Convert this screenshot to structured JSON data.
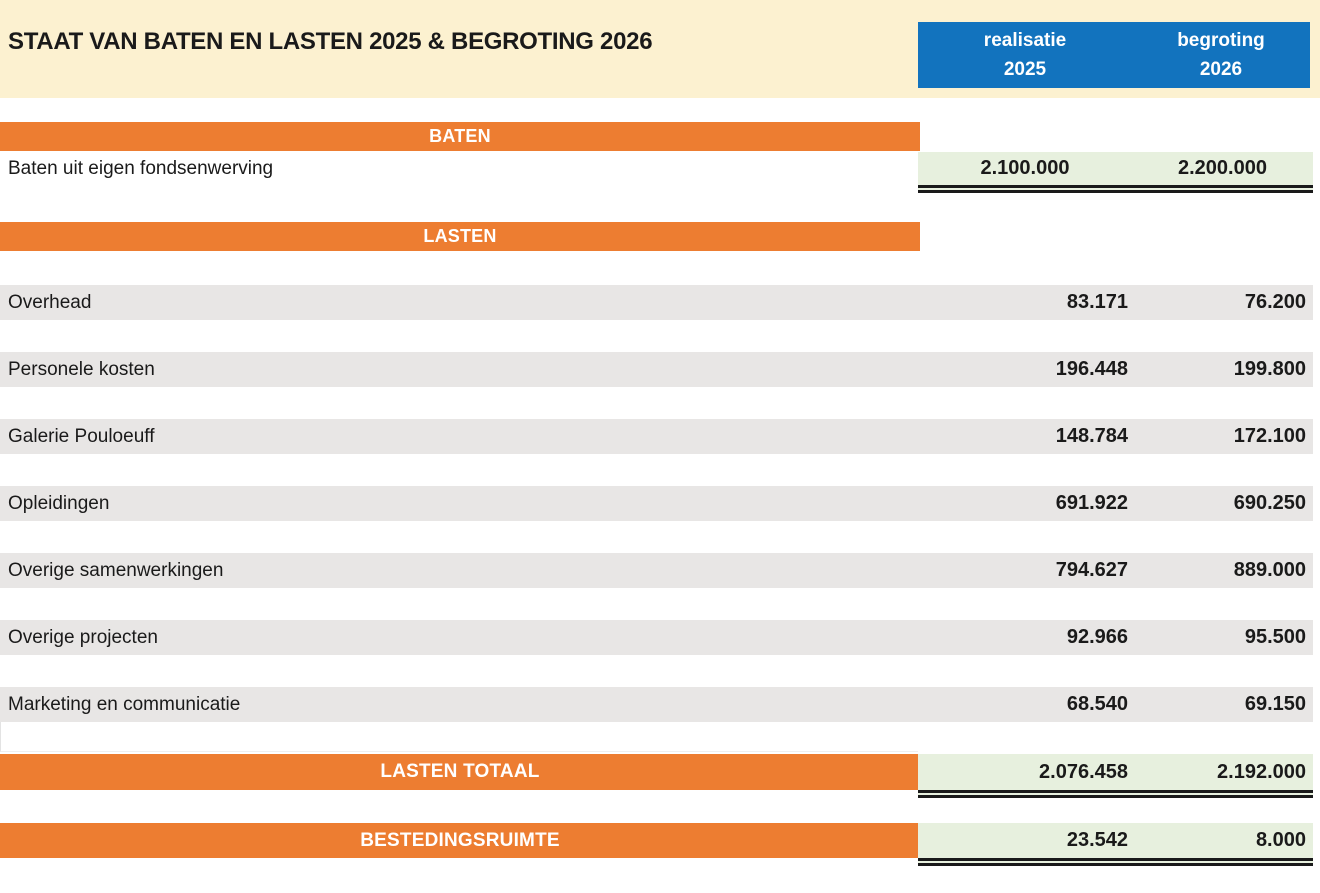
{
  "title": "STAAT VAN BATEN EN LASTEN 2025 & BEGROTING 2026",
  "columns": {
    "col1": {
      "label": "realisatie",
      "year": "2025"
    },
    "col2": {
      "label": "begroting",
      "year": "2026"
    }
  },
  "baten": {
    "header": "BATEN",
    "row": {
      "label": "Baten uit eigen fondsenwerving",
      "realisatie_2025": "2.100.000",
      "begroting_2026": "2.200.000"
    }
  },
  "lasten": {
    "header": "LASTEN",
    "rows": [
      {
        "label": "Overhead",
        "realisatie_2025": "83.171",
        "begroting_2026": "76.200"
      },
      {
        "label": "Personele kosten",
        "realisatie_2025": "196.448",
        "begroting_2026": "199.800"
      },
      {
        "label": "Galerie Pouloeuff",
        "realisatie_2025": "148.784",
        "begroting_2026": "172.100"
      },
      {
        "label": "Opleidingen",
        "realisatie_2025": "691.922",
        "begroting_2026": "690.250"
      },
      {
        "label": "Overige samenwerkingen",
        "realisatie_2025": "794.627",
        "begroting_2026": "889.000"
      },
      {
        "label": "Overige projecten",
        "realisatie_2025": "92.966",
        "begroting_2026": "95.500"
      },
      {
        "label": "Marketing en communicatie",
        "realisatie_2025": "68.540",
        "begroting_2026": "69.150"
      }
    ]
  },
  "totals": {
    "lasten_totaal": {
      "label": "LASTEN TOTAAL",
      "realisatie_2025": "2.076.458",
      "begroting_2026": "2.192.000"
    },
    "bestedingsruimte": {
      "label": "BESTEDINGSRUIMTE",
      "realisatie_2025": "23.542",
      "begroting_2026": "8.000"
    }
  },
  "colors": {
    "cream": "#FCF1D0",
    "blue": "#1273BE",
    "orange": "#ED7D31",
    "green": "#E7F0DE",
    "gray": "#E8E6E5",
    "text": "#1a1a1a"
  }
}
